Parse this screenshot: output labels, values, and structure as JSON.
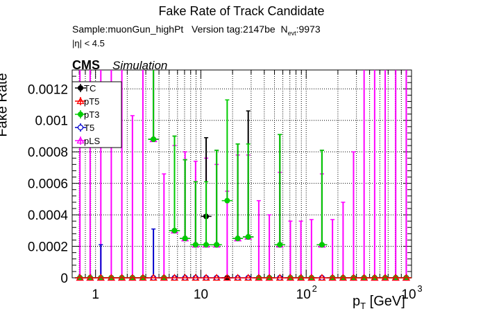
{
  "header": {
    "title": "Fake Rate of Track Candidate",
    "sample_prefix": "Sample:",
    "sample_name": "muonGun_highPt",
    "version_prefix": "Version tag:",
    "version_tag": "2147be",
    "nevt_label": "N",
    "nevt_sub": "evt",
    "nevt_value": ":9973",
    "eta_cut": "|η| < 4.5",
    "cms": "CMS",
    "simulation": "Simulation"
  },
  "chart_data": {
    "type": "scatter",
    "title": "Fake Rate of Track Candidate",
    "xlabel": "p_T [GeV]",
    "xlabel_main": "p",
    "xlabel_sub": "T",
    "xlabel_unit": " [GeV]",
    "ylabel": "Fake Rate",
    "xscale": "log",
    "xlim": [
      0.6,
      1000
    ],
    "ylim": [
      0,
      0.00132
    ],
    "grid": true,
    "legend_position": "top-left",
    "x_tick_labels": [
      {
        "value": 1,
        "label": "1"
      },
      {
        "value": 10,
        "label": "10"
      },
      {
        "value": 100,
        "label": "10",
        "exp": "2"
      },
      {
        "value": 1000,
        "label": "10",
        "exp": "3"
      }
    ],
    "y_ticks": [
      {
        "value": 0,
        "label": "0"
      },
      {
        "value": 0.0002,
        "label": "0.0002"
      },
      {
        "value": 0.0004,
        "label": "0.0004"
      },
      {
        "value": 0.0006,
        "label": "0.0006"
      },
      {
        "value": 0.0008,
        "label": "0.0008"
      },
      {
        "value": 0.001,
        "label": "0.001"
      },
      {
        "value": 0.0012,
        "label": "0.0012"
      }
    ],
    "bin_edges": [
      0.64,
      0.79,
      1.0,
      1.26,
      1.58,
      2.0,
      2.51,
      3.16,
      3.98,
      5.01,
      6.31,
      7.94,
      10.0,
      12.6,
      15.8,
      20.0,
      25.1,
      31.6,
      39.8,
      50.1,
      63.1,
      79.4,
      100,
      126,
      158,
      200,
      251,
      316,
      398,
      501,
      631,
      794,
      1000
    ],
    "series": [
      {
        "name": "TC",
        "color": "#000000",
        "marker": "circle-filled",
        "values": [
          0,
          0,
          0,
          0,
          0,
          0,
          0,
          0.00088,
          0,
          0.0003,
          0.00025,
          0.00021,
          0.00039,
          0.00021,
          0,
          0.00025,
          0.00026,
          0,
          0,
          0.00021,
          0,
          0,
          0,
          0.00021,
          0,
          0,
          0,
          0,
          0,
          0,
          0,
          0
        ],
        "err_up": [
          0,
          0,
          0,
          0,
          0,
          0,
          0,
          0.0009,
          0,
          0.0006,
          0.0005,
          0.0004,
          0.0005,
          0.0006,
          0,
          0.0006,
          0.0008,
          0,
          0,
          0.0007,
          0,
          0,
          0,
          0.0006,
          0,
          0,
          0,
          0,
          0,
          0,
          0,
          0
        ]
      },
      {
        "name": "pT5",
        "color": "#ff0000",
        "marker": "triangle-open",
        "values": [
          0,
          0,
          0,
          0,
          0,
          0,
          0,
          0,
          0,
          0,
          0,
          0,
          0,
          0,
          0,
          0,
          0,
          0,
          0,
          0,
          0,
          0,
          0,
          0,
          0,
          0,
          0,
          0,
          0,
          0,
          0,
          0
        ]
      },
      {
        "name": "pT3",
        "color": "#00cc00",
        "marker": "circle-filled",
        "values": [
          0,
          0,
          0,
          0,
          0,
          0,
          0,
          0.00088,
          0,
          0.0003,
          0.00025,
          0.00021,
          0.00021,
          0.00021,
          0.00049,
          0.00025,
          0.00026,
          0,
          0,
          0.00021,
          0,
          0,
          0,
          0.00021,
          0,
          0,
          0,
          0,
          0,
          0,
          0,
          0
        ],
        "err_up": [
          0,
          0,
          0,
          0,
          0,
          0,
          0,
          0.0009,
          0,
          0.0006,
          0.0005,
          0.0004,
          0.0004,
          0.0006,
          0.00064,
          0.0006,
          0.00059,
          0,
          0,
          0.0007,
          0,
          0,
          0,
          0.0006,
          0,
          0,
          0,
          0,
          0,
          0,
          0,
          0
        ]
      },
      {
        "name": "T5",
        "color": "#0000cc",
        "marker": "circle-open",
        "values": [
          0,
          0,
          0,
          0,
          0,
          0,
          0,
          0,
          0,
          0,
          0,
          0,
          0,
          0,
          0,
          0,
          0,
          0,
          0,
          0,
          0,
          0,
          0,
          0,
          0,
          0,
          0,
          0,
          0,
          0,
          0,
          0
        ],
        "err_up": [
          0,
          0,
          0.00021,
          0,
          0,
          0,
          0,
          0.00031,
          0,
          0,
          0,
          0,
          0,
          0,
          0,
          0,
          0,
          0,
          0,
          0,
          0,
          0,
          0,
          0,
          0,
          0,
          0,
          0,
          0,
          0,
          0,
          0
        ]
      },
      {
        "name": "pLS",
        "color": "#ff00ff",
        "marker": "triangle-open",
        "values": [
          0,
          0,
          0,
          0,
          0,
          0,
          0,
          0.00088,
          0,
          0.0003,
          0.00025,
          0.00021,
          0.00021,
          0.00021,
          0,
          0.00025,
          0.00026,
          0,
          0,
          0.00021,
          0,
          0,
          0,
          0.00021,
          0,
          0,
          0,
          0,
          0,
          0,
          0,
          0
        ],
        "err_up": [
          0.0014,
          0.0014,
          0.0014,
          0.0014,
          0.0014,
          0.00103,
          0.0014,
          0.00052,
          0.00066,
          0.00054,
          0.00055,
          0.00053,
          0.00055,
          0.00051,
          0.00055,
          0.00053,
          0.00052,
          0.00049,
          0.0004,
          0.00046,
          0.00036,
          0.00036,
          0.00037,
          0.00045,
          0.00037,
          0.00048,
          0.0008,
          0.0014,
          0.0014,
          0.0014,
          0.0014,
          0.0014
        ]
      }
    ]
  }
}
